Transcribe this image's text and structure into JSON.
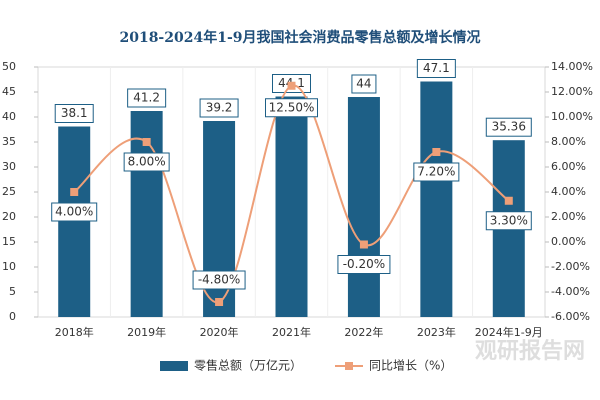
{
  "chart_data": {
    "type": "combo",
    "title": "2018-2024年1-9月我国社会消费品零售总额及增长情况",
    "categories": [
      "2018年",
      "2019年",
      "2020年",
      "2021年",
      "2022年",
      "2023年",
      "2024年1-9月"
    ],
    "series": [
      {
        "name": "零售总额（万亿元）",
        "type": "bar",
        "color": "#1d5f86",
        "values": [
          38.1,
          41.2,
          39.2,
          44.1,
          44,
          47.1,
          35.36
        ]
      },
      {
        "name": "同比增长（%）",
        "type": "line",
        "axis": "y2",
        "color": "#ee9f78",
        "values": [
          4,
          8,
          -4.8,
          12.5,
          -0.2,
          7.2,
          3.3
        ],
        "value_labels": [
          "4.00%",
          "8.00%",
          "-4.80%",
          "12.50%",
          "-0.20%",
          "7.20%",
          "3.30%"
        ]
      }
    ],
    "ylim": [
      0,
      50
    ],
    "yticks": [
      0,
      5,
      10,
      15,
      20,
      25,
      30,
      35,
      40,
      45,
      50
    ],
    "y2lim": [
      -6,
      14
    ],
    "y2ticks": [
      {
        "value": -6,
        "label": "-6.00%"
      },
      {
        "value": -4,
        "label": "-4.00%"
      },
      {
        "value": -2,
        "label": "-2.00%"
      },
      {
        "value": 0,
        "label": "0.00%"
      },
      {
        "value": 2,
        "label": "2.00%"
      },
      {
        "value": 4,
        "label": "4.00%"
      },
      {
        "value": 6,
        "label": "6.00%"
      },
      {
        "value": 8,
        "label": "8.00%"
      },
      {
        "value": 10,
        "label": "10.00%"
      },
      {
        "value": 12,
        "label": "12.00%"
      },
      {
        "value": 14,
        "label": "14.00%"
      }
    ],
    "legend": "bottom",
    "watermark": "观研报告网"
  }
}
